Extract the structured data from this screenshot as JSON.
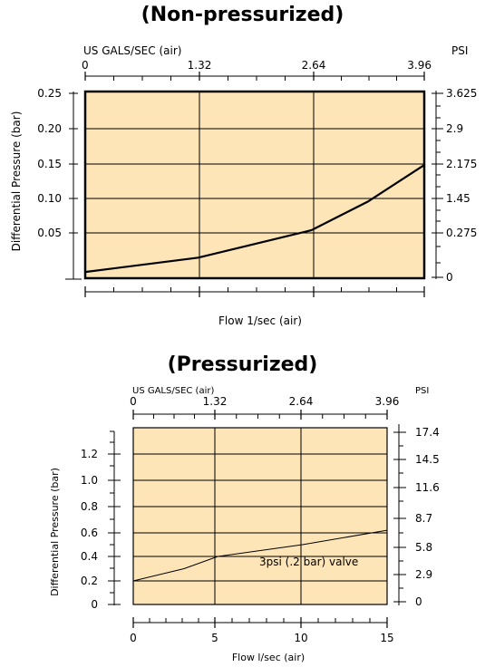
{
  "chart_data": [
    {
      "type": "line",
      "title": "(Non-pressurized)",
      "top_axis_label": "US GALS/SEC (air)",
      "top_ticks": [
        "0",
        "1.32",
        "2.64",
        "3.96"
      ],
      "right_axis_label": "PSI",
      "right_ticks": [
        "3.625",
        "2.9",
        "2.175",
        "1.45",
        "0.275",
        "0"
      ],
      "ylabel": "Differential Pressure (bar)",
      "y_ticks": [
        "0.25",
        "0.20",
        "0.15",
        "0.10",
        "0.05"
      ],
      "xlabel": "Flow 1/sec (air)",
      "xlim": [
        0,
        3.96
      ],
      "ylim": [
        -0.05,
        0.25
      ],
      "grid": true,
      "series": [
        {
          "x": [
            0,
            1.32,
            2.64,
            3.3,
            3.96
          ],
          "y": [
            -0.04,
            -0.017,
            0.027,
            0.073,
            0.132
          ]
        }
      ]
    },
    {
      "type": "line",
      "title": "(Pressurized)",
      "top_axis_label": "US GALS/SEC (air)",
      "top_ticks": [
        "0",
        "1.32",
        "2.64",
        "3.96"
      ],
      "right_axis_label": "PSI",
      "right_ticks": [
        "17.4",
        "14.5",
        "11.6",
        "8.7",
        "5.8",
        "2.9",
        "0"
      ],
      "ylabel": "Differential Pressure (bar)",
      "y_ticks": [
        "1.2",
        "1.0",
        "0.8",
        "0.6",
        "0.4",
        "0.2",
        "0"
      ],
      "xlabel": "Flow  l/sec (air)",
      "x_ticks": [
        "0",
        "5",
        "10",
        "15"
      ],
      "xlim": [
        0,
        15
      ],
      "ylim": [
        0,
        1.2
      ],
      "grid": true,
      "annotation": "3psi (.2 bar) valve",
      "series": [
        {
          "x": [
            0,
            3,
            5,
            10,
            15
          ],
          "y": [
            0.2,
            0.3,
            0.4,
            0.5,
            0.62
          ]
        }
      ]
    }
  ]
}
